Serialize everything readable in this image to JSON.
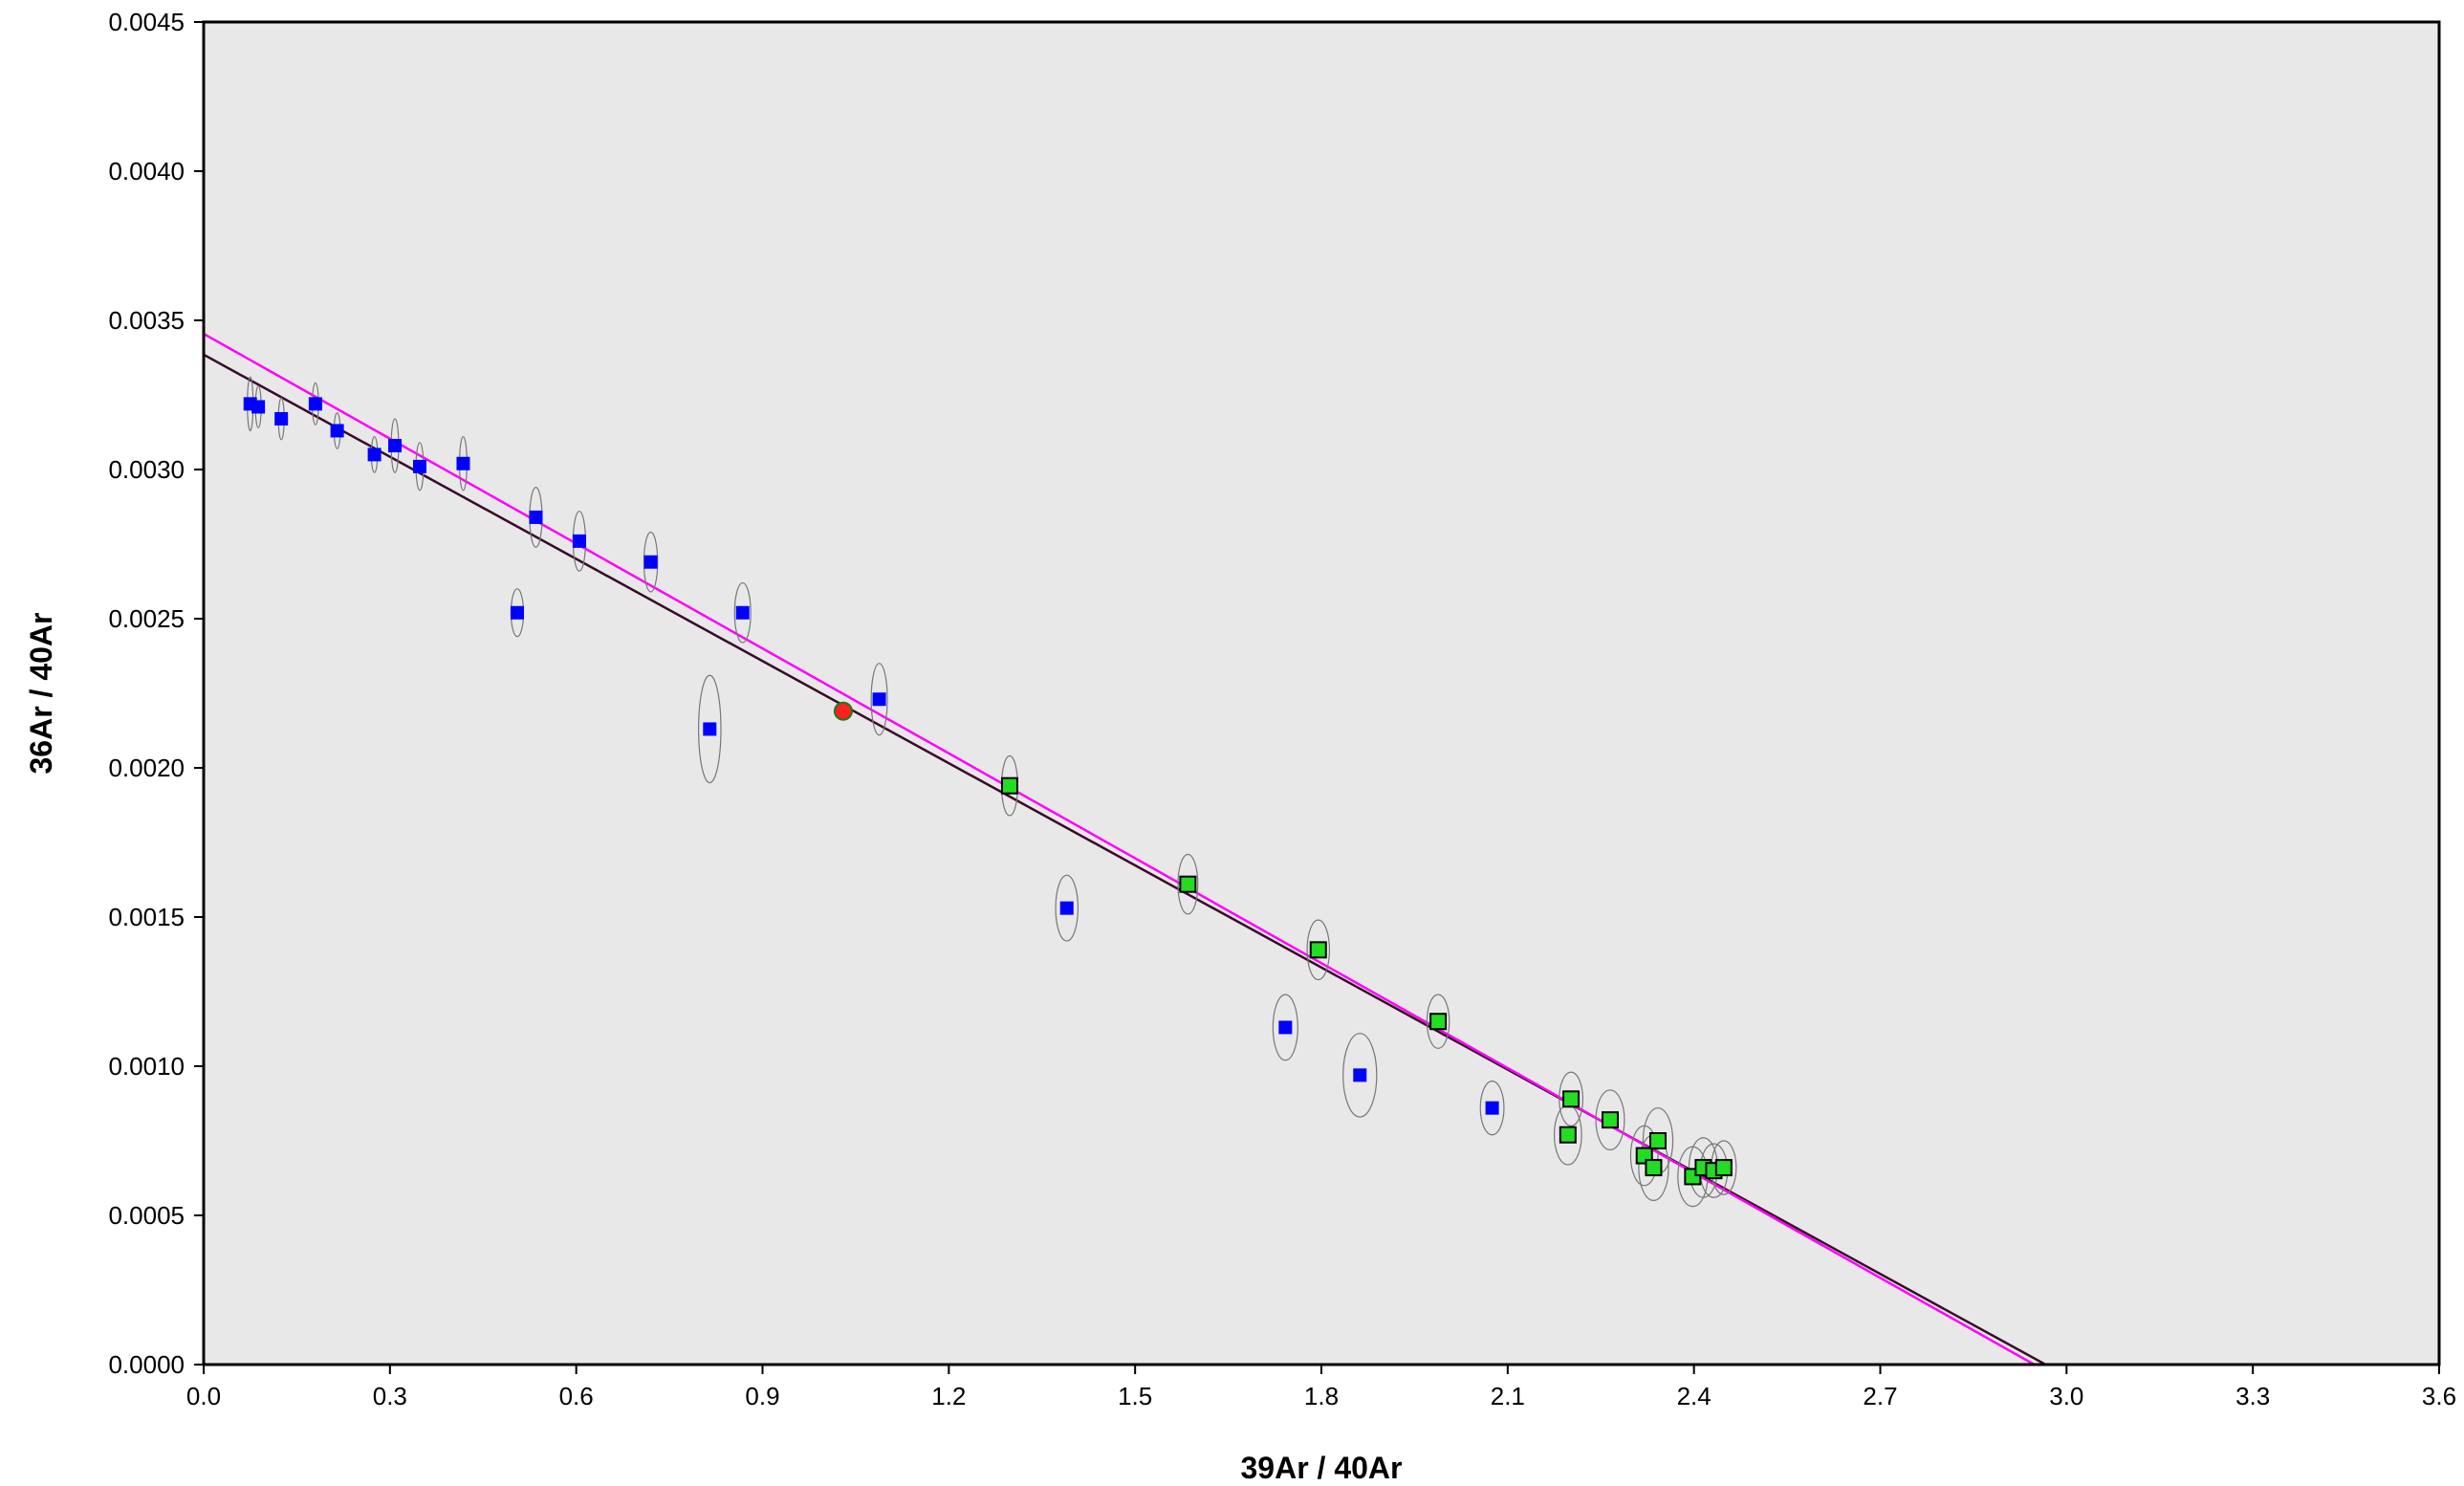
{
  "chart_data": {
    "type": "scatter",
    "title": "",
    "xlabel": "39Ar / 40Ar",
    "ylabel": "36Ar / 40Ar",
    "xlim": [
      0,
      3.6
    ],
    "ylim": [
      0,
      0.0045
    ],
    "x_ticks": [
      "0.0",
      "0.3",
      "0.6",
      "0.9",
      "1.2",
      "1.5",
      "1.8",
      "2.1",
      "2.4",
      "2.7",
      "3.0",
      "3.3",
      "3.6"
    ],
    "y_ticks": [
      "0.0000",
      "0.0005",
      "0.0010",
      "0.0015",
      "0.0020",
      "0.0025",
      "0.0030",
      "0.0035",
      "0.0040",
      "0.0045"
    ],
    "grid": false,
    "colors": {
      "background": "#e8e8e8",
      "excluded_marker": "#0000ff",
      "included_marker": "#22dd22",
      "special_marker": "#ff2020",
      "line_dark": "#3a0a2a",
      "line_magenta": "#ff00ff",
      "ellipse": "#777777"
    },
    "series": [
      {
        "marker": "blue-square",
        "points": [
          {
            "x": 0.075,
            "y": 0.00322,
            "ex": 0.004,
            "ey": 9e-05
          },
          {
            "x": 0.088,
            "y": 0.00321,
            "ex": 0.004,
            "ey": 7e-05
          },
          {
            "x": 0.125,
            "y": 0.00317,
            "ex": 0.004,
            "ey": 7e-05
          },
          {
            "x": 0.18,
            "y": 0.00322,
            "ex": 0.005,
            "ey": 7e-05
          },
          {
            "x": 0.215,
            "y": 0.00313,
            "ex": 0.005,
            "ey": 6e-05
          },
          {
            "x": 0.275,
            "y": 0.00305,
            "ex": 0.005,
            "ey": 6e-05
          },
          {
            "x": 0.308,
            "y": 0.00308,
            "ex": 0.006,
            "ey": 9e-05
          },
          {
            "x": 0.348,
            "y": 0.00301,
            "ex": 0.006,
            "ey": 8e-05
          },
          {
            "x": 0.418,
            "y": 0.00302,
            "ex": 0.006,
            "ey": 9e-05
          },
          {
            "x": 0.535,
            "y": 0.00284,
            "ex": 0.01,
            "ey": 0.0001
          },
          {
            "x": 0.605,
            "y": 0.00276,
            "ex": 0.01,
            "ey": 0.0001
          },
          {
            "x": 0.72,
            "y": 0.00269,
            "ex": 0.011,
            "ey": 0.0001
          },
          {
            "x": 0.505,
            "y": 0.00252,
            "ex": 0.01,
            "ey": 8e-05
          },
          {
            "x": 0.868,
            "y": 0.00252,
            "ex": 0.013,
            "ey": 0.0001
          },
          {
            "x": 0.815,
            "y": 0.00213,
            "ex": 0.018,
            "ey": 0.00018
          },
          {
            "x": 1.088,
            "y": 0.00223,
            "ex": 0.013,
            "ey": 0.00012
          },
          {
            "x": 1.39,
            "y": 0.00153,
            "ex": 0.018,
            "ey": 0.00011
          },
          {
            "x": 1.742,
            "y": 0.00113,
            "ex": 0.02,
            "ey": 0.00011
          },
          {
            "x": 1.862,
            "y": 0.00097,
            "ex": 0.027,
            "ey": 0.00014
          },
          {
            "x": 2.075,
            "y": 0.00086,
            "ex": 0.019,
            "ey": 9e-05
          }
        ]
      },
      {
        "marker": "green-square",
        "points": [
          {
            "x": 1.298,
            "y": 0.00194,
            "ex": 0.013,
            "ey": 0.0001
          },
          {
            "x": 1.585,
            "y": 0.00161,
            "ex": 0.016,
            "ey": 0.0001
          },
          {
            "x": 1.795,
            "y": 0.00139,
            "ex": 0.018,
            "ey": 0.0001
          },
          {
            "x": 1.988,
            "y": 0.00115,
            "ex": 0.018,
            "ey": 9e-05
          },
          {
            "x": 2.202,
            "y": 0.00089,
            "ex": 0.019,
            "ey": 9e-05
          },
          {
            "x": 2.197,
            "y": 0.00077,
            "ex": 0.022,
            "ey": 0.0001
          },
          {
            "x": 2.265,
            "y": 0.00082,
            "ex": 0.023,
            "ey": 0.0001
          },
          {
            "x": 2.32,
            "y": 0.0007,
            "ex": 0.022,
            "ey": 0.0001
          },
          {
            "x": 2.342,
            "y": 0.00075,
            "ex": 0.024,
            "ey": 0.00011
          },
          {
            "x": 2.335,
            "y": 0.00066,
            "ex": 0.024,
            "ey": 0.00011
          },
          {
            "x": 2.398,
            "y": 0.00063,
            "ex": 0.024,
            "ey": 0.0001
          },
          {
            "x": 2.415,
            "y": 0.00066,
            "ex": 0.023,
            "ey": 0.0001
          },
          {
            "x": 2.432,
            "y": 0.00065,
            "ex": 0.022,
            "ey": 9e-05
          },
          {
            "x": 2.448,
            "y": 0.00066,
            "ex": 0.02,
            "ey": 9e-05
          }
        ]
      },
      {
        "marker": "red-circle",
        "points": [
          {
            "x": 1.03,
            "y": 0.00219
          }
        ]
      }
    ],
    "lines": [
      {
        "color": "#3a0a2a",
        "x1": 0,
        "y1": 0.003385,
        "x2": 2.975,
        "y2": -1e-05
      },
      {
        "color": "#ff00ff",
        "x1": 0,
        "y1": 0.003455,
        "x2": 2.965,
        "y2": -2e-05
      }
    ]
  }
}
